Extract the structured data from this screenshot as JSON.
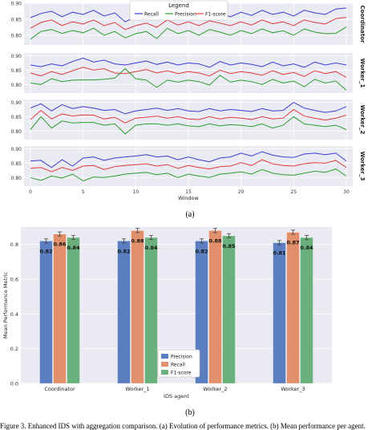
{
  "figure_a": {
    "caption": "(a)",
    "legend_title": "Legend",
    "xlabel": "Window",
    "x_ticks": [
      "0",
      "5",
      "10",
      "15",
      "20",
      "25",
      "30"
    ],
    "colors": {
      "Recall": "#3b3bd6",
      "Precision": "#2e9e2e",
      "F1-score": "#e03c3c"
    }
  },
  "figure_b": {
    "caption": "(b)",
    "xlabel": "IDS agent",
    "ylabel": "Mean Performance Metric",
    "y_ticks": [
      "0.0",
      "0.2",
      "0.4",
      "0.6",
      "0.8"
    ],
    "colors": {
      "Precision": "#5a7ec0",
      "Recall": "#e2906b",
      "F1-score": "#6ab07c"
    }
  },
  "bottom_text": "Figure 3. Enhanced IDS with aggregation comparison. (a) Evolution of performance metrics. (b) Mean performance per agent.",
  "chart_data": [
    {
      "type": "line",
      "facets": [
        {
          "name": "Coordinator",
          "ylim": [
            0.77,
            0.9
          ],
          "yticks": [
            0.8,
            0.85,
            0.9
          ],
          "series": [
            {
              "name": "Recall",
              "values": [
                0.855,
                0.868,
                0.875,
                0.858,
                0.872,
                0.865,
                0.878,
                0.86,
                0.87,
                0.842,
                0.858,
                0.868,
                0.855,
                0.878,
                0.862,
                0.872,
                0.86,
                0.875,
                0.868,
                0.858,
                0.872,
                0.862,
                0.878,
                0.865,
                0.872,
                0.86,
                0.878,
                0.87,
                0.865,
                0.882,
                0.885
              ]
            },
            {
              "name": "F1-score",
              "values": [
                0.822,
                0.84,
                0.848,
                0.83,
                0.842,
                0.835,
                0.848,
                0.83,
                0.84,
                0.818,
                0.83,
                0.838,
                0.825,
                0.848,
                0.832,
                0.842,
                0.83,
                0.845,
                0.838,
                0.83,
                0.842,
                0.832,
                0.848,
                0.836,
                0.842,
                0.83,
                0.848,
                0.84,
                0.835,
                0.852,
                0.856
              ]
            },
            {
              "name": "Precision",
              "values": [
                0.788,
                0.812,
                0.818,
                0.806,
                0.815,
                0.808,
                0.822,
                0.8,
                0.812,
                0.792,
                0.805,
                0.812,
                0.79,
                0.822,
                0.805,
                0.815,
                0.8,
                0.818,
                0.81,
                0.8,
                0.815,
                0.805,
                0.82,
                0.808,
                0.814,
                0.8,
                0.82,
                0.81,
                0.805,
                0.806,
                0.826
              ]
            }
          ]
        },
        {
          "name": "Worker_1",
          "ylim": [
            0.77,
            0.91
          ],
          "yticks": [
            0.8,
            0.85,
            0.9
          ],
          "series": [
            {
              "name": "Recall",
              "values": [
                0.868,
                0.862,
                0.872,
                0.865,
                0.88,
                0.892,
                0.878,
                0.885,
                0.872,
                0.868,
                0.875,
                0.882,
                0.87,
                0.878,
                0.868,
                0.875,
                0.872,
                0.86,
                0.88,
                0.868,
                0.875,
                0.87,
                0.862,
                0.878,
                0.865,
                0.872,
                0.86,
                0.878,
                0.868,
                0.875,
                0.868
              ]
            },
            {
              "name": "F1-score",
              "values": [
                0.84,
                0.83,
                0.845,
                0.835,
                0.848,
                0.86,
                0.85,
                0.855,
                0.84,
                0.838,
                0.845,
                0.852,
                0.84,
                0.848,
                0.838,
                0.845,
                0.84,
                0.83,
                0.85,
                0.838,
                0.845,
                0.84,
                0.832,
                0.848,
                0.835,
                0.842,
                0.828,
                0.848,
                0.838,
                0.845,
                0.825
              ]
            },
            {
              "name": "Precision",
              "values": [
                0.805,
                0.8,
                0.82,
                0.81,
                0.815,
                0.816,
                0.816,
                0.818,
                0.822,
                0.855,
                0.82,
                0.815,
                0.79,
                0.815,
                0.808,
                0.815,
                0.81,
                0.798,
                0.832,
                0.808,
                0.815,
                0.81,
                0.8,
                0.818,
                0.805,
                0.812,
                0.792,
                0.818,
                0.805,
                0.812,
                0.78
              ]
            }
          ]
        },
        {
          "name": "Worker_2",
          "ylim": [
            0.77,
            0.91
          ],
          "yticks": [
            0.8,
            0.85,
            0.9
          ],
          "series": [
            {
              "name": "Recall",
              "values": [
                0.88,
                0.895,
                0.87,
                0.892,
                0.878,
                0.885,
                0.88,
                0.872,
                0.875,
                0.86,
                0.87,
                0.875,
                0.88,
                0.872,
                0.878,
                0.87,
                0.868,
                0.878,
                0.87,
                0.875,
                0.872,
                0.868,
                0.878,
                0.87,
                0.872,
                0.9,
                0.88,
                0.872,
                0.865,
                0.87,
                0.885
              ]
            },
            {
              "name": "F1-score",
              "values": [
                0.84,
                0.872,
                0.842,
                0.86,
                0.852,
                0.856,
                0.855,
                0.842,
                0.848,
                0.828,
                0.845,
                0.848,
                0.852,
                0.845,
                0.85,
                0.842,
                0.84,
                0.85,
                0.842,
                0.848,
                0.845,
                0.84,
                0.85,
                0.842,
                0.845,
                0.875,
                0.852,
                0.845,
                0.838,
                0.845,
                0.855
              ]
            },
            {
              "name": "Precision",
              "values": [
                0.805,
                0.85,
                0.81,
                0.835,
                0.828,
                0.83,
                0.83,
                0.82,
                0.825,
                0.79,
                0.82,
                0.825,
                0.825,
                0.82,
                0.825,
                0.818,
                0.815,
                0.825,
                0.818,
                0.822,
                0.82,
                0.815,
                0.825,
                0.81,
                0.82,
                0.85,
                0.825,
                0.82,
                0.815,
                0.82,
                0.805
              ]
            }
          ]
        },
        {
          "name": "Worker_3",
          "ylim": [
            0.77,
            0.91
          ],
          "yticks": [
            0.8,
            0.85,
            0.9
          ],
          "series": [
            {
              "name": "Recall",
              "values": [
                0.858,
                0.86,
                0.835,
                0.862,
                0.84,
                0.868,
                0.872,
                0.86,
                0.868,
                0.872,
                0.875,
                0.88,
                0.872,
                0.875,
                0.862,
                0.872,
                0.862,
                0.855,
                0.868,
                0.872,
                0.885,
                0.875,
                0.89,
                0.878,
                0.872,
                0.87,
                0.882,
                0.885,
                0.88,
                0.885,
                0.858
              ]
            },
            {
              "name": "F1-score",
              "values": [
                0.832,
                0.835,
                0.82,
                0.835,
                0.825,
                0.84,
                0.842,
                0.828,
                0.838,
                0.842,
                0.845,
                0.848,
                0.84,
                0.845,
                0.832,
                0.842,
                0.835,
                0.83,
                0.838,
                0.84,
                0.852,
                0.842,
                0.862,
                0.848,
                0.842,
                0.84,
                0.848,
                0.852,
                0.85,
                0.86,
                0.835
              ]
            },
            {
              "name": "Precision",
              "values": [
                0.8,
                0.79,
                0.805,
                0.798,
                0.812,
                0.788,
                0.802,
                0.8,
                0.805,
                0.812,
                0.815,
                0.818,
                0.81,
                0.815,
                0.8,
                0.812,
                0.805,
                0.8,
                0.812,
                0.815,
                0.82,
                0.812,
                0.828,
                0.815,
                0.81,
                0.808,
                0.815,
                0.822,
                0.818,
                0.83,
                0.805
              ]
            }
          ]
        }
      ],
      "x": [
        0,
        1,
        2,
        3,
        4,
        5,
        6,
        7,
        8,
        9,
        10,
        11,
        12,
        13,
        14,
        15,
        16,
        17,
        18,
        19,
        20,
        21,
        22,
        23,
        24,
        25,
        26,
        27,
        28,
        29,
        30
      ],
      "xlabel": "Window",
      "legend_title": "Legend",
      "legend_position": "top-center",
      "grid": true
    },
    {
      "type": "bar",
      "categories": [
        "Coordinator",
        "Worker_1",
        "Worker_2",
        "Worker_3"
      ],
      "series": [
        {
          "name": "Precision",
          "values": [
            0.82,
            0.82,
            0.82,
            0.81
          ],
          "labels": [
            "0.82",
            "0.82",
            "0.82",
            "0.81"
          ]
        },
        {
          "name": "Recall",
          "values": [
            0.86,
            0.88,
            0.88,
            0.87
          ],
          "labels": [
            "0.86",
            "0.88",
            "0.88",
            "0.87"
          ]
        },
        {
          "name": "F1-score",
          "values": [
            0.84,
            0.84,
            0.85,
            0.84
          ],
          "labels": [
            "0.84",
            "0.84",
            "0.85",
            "0.84"
          ]
        }
      ],
      "xlabel": "IDS agent",
      "ylabel": "Mean Performance Metric",
      "ylim": [
        0,
        0.9
      ],
      "legend_position": "bottom-center",
      "grid": true,
      "error_bars": true
    }
  ]
}
